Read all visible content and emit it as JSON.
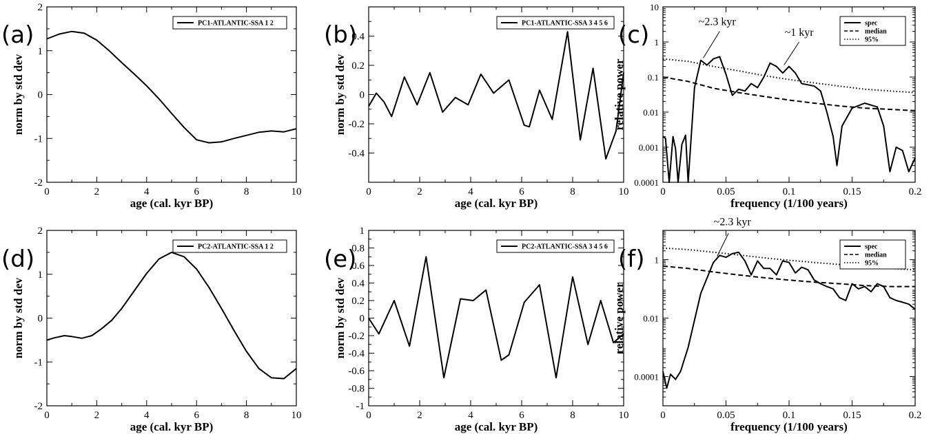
{
  "chart_data": [
    {
      "panel": "(a)",
      "type": "line",
      "xlabel": "age (cal. kyr BP)",
      "ylabel": "norm by std dev",
      "xlim": [
        0,
        10
      ],
      "ylim": [
        -2,
        2
      ],
      "yscale": "linear",
      "xticks": [
        0,
        2,
        4,
        6,
        8,
        10
      ],
      "yticks": [
        -2,
        -1,
        0,
        1,
        2
      ],
      "xtick_labels": [
        "0",
        "2",
        "4",
        "6",
        "8",
        "10"
      ],
      "ytick_labels": [
        "-2",
        "-1",
        "0",
        "1",
        "2"
      ],
      "legend_placement": "top-right",
      "series": [
        {
          "name": "PC1-ATLANTIC-SSA 1 2",
          "style": "solid",
          "x": [
            0,
            0.5,
            1.0,
            1.5,
            2.0,
            2.5,
            3.0,
            3.5,
            4.0,
            4.5,
            5.0,
            5.5,
            6.0,
            6.5,
            7.0,
            7.5,
            8.0,
            8.5,
            9.0,
            9.5,
            10.0
          ],
          "y": [
            1.27,
            1.38,
            1.44,
            1.4,
            1.24,
            1.0,
            0.73,
            0.47,
            0.2,
            -0.1,
            -0.43,
            -0.75,
            -1.03,
            -1.1,
            -1.08,
            -1.0,
            -0.93,
            -0.86,
            -0.83,
            -0.85,
            -0.78
          ]
        }
      ],
      "annotations": []
    },
    {
      "panel": "(b)",
      "type": "line",
      "xlabel": "age (cal. kyr BP)",
      "ylabel": "norm by std dev",
      "xlim": [
        0,
        10
      ],
      "ylim": [
        -0.6,
        0.6
      ],
      "yscale": "linear",
      "xticks": [
        0,
        2,
        4,
        6,
        8,
        10
      ],
      "yticks": [
        -0.4,
        -0.2,
        0,
        0.2,
        0.4
      ],
      "xtick_labels": [
        "0",
        "2",
        "4",
        "6",
        "8",
        "10"
      ],
      "ytick_labels": [
        "-0.4",
        "-0.2",
        "0",
        "0.2",
        "0.4"
      ],
      "legend_placement": "top-right",
      "series": [
        {
          "name": "PC1-ATLANTIC-SSA 3 4 5 6",
          "style": "solid",
          "x": [
            0,
            0.3,
            0.6,
            0.9,
            1.4,
            1.9,
            2.4,
            2.9,
            3.4,
            3.9,
            4.4,
            4.9,
            5.5,
            6.1,
            6.3,
            6.7,
            7.2,
            7.8,
            8.3,
            8.8,
            9.3,
            9.7,
            10.0
          ],
          "y": [
            -0.08,
            0.01,
            -0.05,
            -0.15,
            0.12,
            -0.07,
            0.15,
            -0.12,
            -0.02,
            -0.07,
            0.14,
            0.01,
            0.1,
            -0.21,
            -0.22,
            0.03,
            -0.17,
            0.43,
            -0.31,
            0.18,
            -0.44,
            -0.25,
            0.15
          ]
        }
      ],
      "annotations": []
    },
    {
      "panel": "(c)",
      "type": "line",
      "xlabel": "frequency (1/100 years)",
      "ylabel": "relative power",
      "xlim": [
        0,
        0.2
      ],
      "ylim": [
        0.0001,
        10
      ],
      "yscale": "log",
      "xticks": [
        0,
        0.05,
        0.1,
        0.15,
        0.2
      ],
      "yticks": [
        0.0001,
        0.001,
        0.01,
        0.1,
        1,
        10
      ],
      "xtick_labels": [
        "0",
        "0.05",
        "0.1",
        "0.15",
        "0.2"
      ],
      "ytick_labels": [
        "0.0001",
        "0.001",
        "0.01",
        "0.1",
        "1",
        "10"
      ],
      "legend_placement": "top-right",
      "series": [
        {
          "name": "spec",
          "style": "solid",
          "x": [
            0,
            0.002,
            0.005,
            0.008,
            0.01,
            0.012,
            0.015,
            0.018,
            0.02,
            0.025,
            0.03,
            0.035,
            0.04,
            0.045,
            0.05,
            0.055,
            0.06,
            0.065,
            0.07,
            0.075,
            0.08,
            0.085,
            0.09,
            0.095,
            0.1,
            0.105,
            0.11,
            0.115,
            0.12,
            0.125,
            0.13,
            0.135,
            0.138,
            0.142,
            0.15,
            0.16,
            0.17,
            0.175,
            0.18,
            0.185,
            0.19,
            0.195,
            0.2
          ],
          "y": [
            0.002,
            0.0018,
            0.0001,
            0.002,
            0.0009,
            0.0001,
            0.0012,
            0.0022,
            0.0001,
            0.05,
            0.3,
            0.22,
            0.33,
            0.38,
            0.12,
            0.03,
            0.045,
            0.04,
            0.065,
            0.05,
            0.1,
            0.25,
            0.2,
            0.13,
            0.2,
            0.13,
            0.065,
            0.06,
            0.055,
            0.04,
            0.01,
            0.002,
            0.0003,
            0.004,
            0.013,
            0.018,
            0.014,
            0.004,
            0.0002,
            0.001,
            0.0008,
            0.0002,
            0.0005
          ]
        },
        {
          "name": "median",
          "style": "dashed",
          "x": [
            0,
            0.02,
            0.04,
            0.06,
            0.08,
            0.1,
            0.12,
            0.14,
            0.16,
            0.18,
            0.2
          ],
          "y": [
            0.1,
            0.075,
            0.048,
            0.036,
            0.028,
            0.022,
            0.018,
            0.015,
            0.013,
            0.012,
            0.011
          ]
        },
        {
          "name": "95%",
          "style": "dotted",
          "x": [
            0,
            0.02,
            0.04,
            0.06,
            0.08,
            0.1,
            0.12,
            0.14,
            0.16,
            0.18,
            0.2
          ],
          "y": [
            0.33,
            0.28,
            0.2,
            0.15,
            0.11,
            0.085,
            0.068,
            0.055,
            0.045,
            0.04,
            0.036
          ]
        }
      ],
      "annotations": [
        {
          "text": "~2.3 kyr",
          "x": 0.043,
          "y": 3.0,
          "line_from": [
            0.045,
            2.0
          ],
          "line_to": [
            0.032,
            0.35
          ]
        },
        {
          "text": "~1 kyr",
          "x": 0.108,
          "y": 1.5,
          "line_from": [
            0.108,
            1.0
          ],
          "line_to": [
            0.096,
            0.22
          ]
        }
      ]
    },
    {
      "panel": "(d)",
      "type": "line",
      "xlabel": "age (cal. kyr BP)",
      "ylabel": "norm by std dev",
      "xlim": [
        0,
        10
      ],
      "ylim": [
        -2,
        2
      ],
      "yscale": "linear",
      "xticks": [
        0,
        2,
        4,
        6,
        8,
        10
      ],
      "yticks": [
        -2,
        -1,
        0,
        1,
        2
      ],
      "xtick_labels": [
        "0",
        "2",
        "4",
        "6",
        "8",
        "10"
      ],
      "ytick_labels": [
        "-2",
        "-1",
        "0",
        "1",
        "2"
      ],
      "legend_placement": "top-right",
      "series": [
        {
          "name": "PC2-ATLANTIC-SSA 1 2",
          "style": "solid",
          "x": [
            0,
            0.3,
            0.7,
            1.0,
            1.4,
            1.8,
            2.2,
            2.6,
            3.0,
            3.5,
            4.0,
            4.5,
            5.0,
            5.5,
            6.0,
            6.5,
            7.0,
            7.5,
            8.0,
            8.5,
            9.0,
            9.5,
            10.0
          ],
          "y": [
            -0.5,
            -0.45,
            -0.4,
            -0.42,
            -0.46,
            -0.4,
            -0.24,
            -0.05,
            0.22,
            0.62,
            1.02,
            1.35,
            1.5,
            1.4,
            1.12,
            0.7,
            0.22,
            -0.28,
            -0.76,
            -1.15,
            -1.36,
            -1.38,
            -1.15
          ]
        }
      ],
      "annotations": []
    },
    {
      "panel": "(e)",
      "type": "line",
      "xlabel": "age (cal. kyr BP)",
      "ylabel": "norm by std dev",
      "xlim": [
        0,
        10
      ],
      "ylim": [
        -1,
        1
      ],
      "yscale": "linear",
      "xticks": [
        0,
        2,
        4,
        6,
        8,
        10
      ],
      "yticks": [
        -1,
        -0.8,
        -0.6,
        -0.4,
        -0.2,
        0,
        0.2,
        0.4,
        0.6,
        0.8,
        1
      ],
      "xtick_labels": [
        "0",
        "2",
        "4",
        "6",
        "8",
        "10"
      ],
      "ytick_labels": [
        "-1",
        "-0.8",
        "-0.6",
        "-0.4",
        "-0.2",
        "0",
        "0.2",
        "0.4",
        "0.6",
        "0.8",
        "1"
      ],
      "legend_placement": "top-right",
      "series": [
        {
          "name": "PC2-ATLANTIC-SSA 3 4 5 6",
          "style": "solid",
          "x": [
            0,
            0.4,
            1.0,
            1.6,
            2.25,
            2.95,
            3.6,
            4.1,
            4.6,
            5.2,
            5.5,
            6.1,
            6.7,
            7.35,
            8.0,
            8.6,
            9.1,
            9.6,
            10.0
          ],
          "y": [
            0,
            -0.18,
            0.2,
            -0.32,
            0.7,
            -0.68,
            0.22,
            0.2,
            0.32,
            -0.48,
            -0.42,
            0.18,
            0.38,
            -0.68,
            0.47,
            -0.3,
            0.2,
            -0.28,
            -0.18
          ]
        }
      ],
      "annotations": []
    },
    {
      "panel": "(f)",
      "type": "line",
      "xlabel": "frequency (1/100 years)",
      "ylabel": "relative power",
      "xlim": [
        0,
        0.2
      ],
      "ylim": [
        1e-05,
        10
      ],
      "yscale": "log",
      "xticks": [
        0,
        0.05,
        0.1,
        0.15,
        0.2
      ],
      "yticks": [
        0.0001,
        0.01,
        1
      ],
      "xtick_labels": [
        "0",
        "0.05",
        "0.1",
        "0.15",
        "0.2"
      ],
      "ytick_labels": [
        "0.0001",
        "0.01",
        "1"
      ],
      "legend_placement": "top-right",
      "series": [
        {
          "name": "spec",
          "style": "solid",
          "x": [
            0,
            0.003,
            0.006,
            0.01,
            0.014,
            0.02,
            0.03,
            0.04,
            0.045,
            0.05,
            0.055,
            0.06,
            0.065,
            0.07,
            0.075,
            0.08,
            0.085,
            0.09,
            0.095,
            0.1,
            0.105,
            0.11,
            0.115,
            0.12,
            0.125,
            0.13,
            0.135,
            0.14,
            0.145,
            0.15,
            0.155,
            0.16,
            0.165,
            0.17,
            0.175,
            0.18,
            0.185,
            0.19,
            0.195,
            0.2
          ],
          "y": [
            0.00015,
            4e-05,
            0.00012,
            8e-05,
            0.00015,
            0.001,
            0.07,
            0.8,
            1.4,
            1.2,
            1.6,
            1.8,
            0.9,
            0.3,
            0.9,
            0.5,
            0.5,
            0.3,
            0.9,
            0.8,
            0.35,
            0.55,
            0.45,
            0.2,
            0.15,
            0.12,
            0.1,
            0.05,
            0.04,
            0.15,
            0.1,
            0.12,
            0.08,
            0.15,
            0.12,
            0.05,
            0.04,
            0.035,
            0.03,
            0.02
          ]
        },
        {
          "name": "median",
          "style": "dashed",
          "x": [
            0,
            0.02,
            0.04,
            0.06,
            0.08,
            0.1,
            0.12,
            0.14,
            0.16,
            0.18,
            0.2
          ],
          "y": [
            0.6,
            0.5,
            0.38,
            0.3,
            0.24,
            0.2,
            0.17,
            0.15,
            0.13,
            0.12,
            0.12
          ]
        },
        {
          "name": "95%",
          "style": "dotted",
          "x": [
            0,
            0.02,
            0.04,
            0.06,
            0.08,
            0.1,
            0.12,
            0.14,
            0.16,
            0.18,
            0.2
          ],
          "y": [
            2.5,
            2.2,
            1.8,
            1.45,
            1.15,
            0.95,
            0.8,
            0.68,
            0.58,
            0.5,
            0.45
          ]
        }
      ],
      "annotations": [
        {
          "text": "~2.3 kyr",
          "x": 0.055,
          "y": 15,
          "line_from": [
            0.052,
            8
          ],
          "line_to": [
            0.043,
            1.3
          ]
        }
      ]
    }
  ]
}
